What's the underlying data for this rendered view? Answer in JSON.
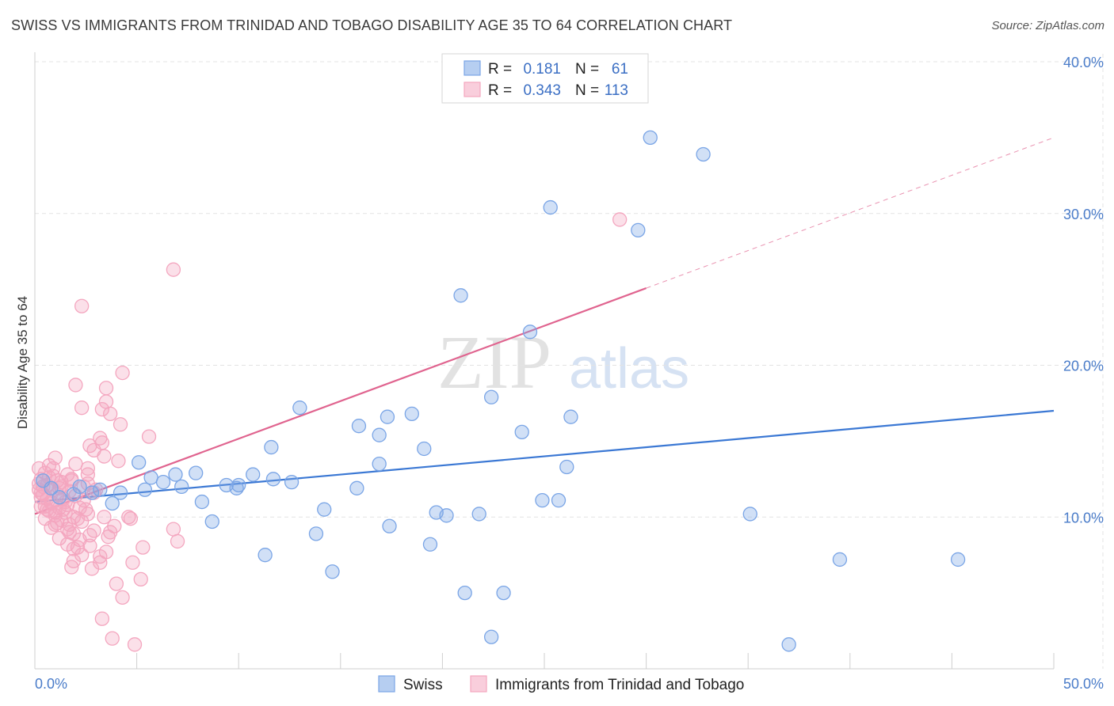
{
  "title": "SWISS VS IMMIGRANTS FROM TRINIDAD AND TOBAGO DISABILITY AGE 35 TO 64 CORRELATION CHART",
  "source": "Source: ZipAtlas.com",
  "watermark": {
    "zip": "ZIP",
    "atlas": "atlas"
  },
  "chart_data": {
    "type": "scatter",
    "title": "SWISS VS IMMIGRANTS FROM TRINIDAD AND TOBAGO DISABILITY AGE 35 TO 64 CORRELATION CHART",
    "xlabel": "",
    "ylabel": "Disability Age 35 to 64",
    "xlim": [
      0,
      50
    ],
    "ylim": [
      0,
      40
    ],
    "x_tick_labels": [
      {
        "value": 0,
        "label": "0.0%"
      },
      {
        "value": 50,
        "label": "50.0%"
      }
    ],
    "y_tick_labels": [
      {
        "value": 10,
        "label": "10.0%"
      },
      {
        "value": 20,
        "label": "20.0%"
      },
      {
        "value": 30,
        "label": "30.0%"
      },
      {
        "value": 40,
        "label": "40.0%"
      }
    ],
    "grid": true,
    "legend_position": "top-center",
    "legend": [
      {
        "series": "Swiss",
        "r_label": "R =",
        "r_value": "0.181",
        "n_label": "N =",
        "n_value": "61"
      },
      {
        "series": "Immigrants from Trinidad and Tobago",
        "r_label": "R =",
        "r_value": "0.343",
        "n_label": "N =",
        "n_value": "113"
      }
    ],
    "series": [
      {
        "name": "Swiss",
        "color": "#7aa5e6",
        "line_color": "#3b78d4",
        "trend": {
          "x0": 0,
          "y0": 11.0,
          "x1": 50,
          "y1": 17.0,
          "solid_to": 50
        },
        "points": [
          [
            30.2,
            35.0
          ],
          [
            32.8,
            33.9
          ],
          [
            25.3,
            30.4
          ],
          [
            29.6,
            28.9
          ],
          [
            20.9,
            24.6
          ],
          [
            24.3,
            22.2
          ],
          [
            22.4,
            17.9
          ],
          [
            13.0,
            17.2
          ],
          [
            17.3,
            16.6
          ],
          [
            18.5,
            16.8
          ],
          [
            26.3,
            16.6
          ],
          [
            15.9,
            16.0
          ],
          [
            16.9,
            15.4
          ],
          [
            23.9,
            15.6
          ],
          [
            11.6,
            14.6
          ],
          [
            19.1,
            14.5
          ],
          [
            5.1,
            13.6
          ],
          [
            16.9,
            13.5
          ],
          [
            7.9,
            12.9
          ],
          [
            6.9,
            12.8
          ],
          [
            26.1,
            13.3
          ],
          [
            10.7,
            12.8
          ],
          [
            5.7,
            12.6
          ],
          [
            11.7,
            12.5
          ],
          [
            12.6,
            12.3
          ],
          [
            6.3,
            12.3
          ],
          [
            9.4,
            12.1
          ],
          [
            10.0,
            12.1
          ],
          [
            7.2,
            12.0
          ],
          [
            9.9,
            11.9
          ],
          [
            15.8,
            11.9
          ],
          [
            3.2,
            11.8
          ],
          [
            5.4,
            11.8
          ],
          [
            2.8,
            11.6
          ],
          [
            4.2,
            11.6
          ],
          [
            1.9,
            11.5
          ],
          [
            1.2,
            11.3
          ],
          [
            8.2,
            11.0
          ],
          [
            3.8,
            10.9
          ],
          [
            24.9,
            11.1
          ],
          [
            25.7,
            11.1
          ],
          [
            14.2,
            10.5
          ],
          [
            19.7,
            10.3
          ],
          [
            20.2,
            10.1
          ],
          [
            21.8,
            10.2
          ],
          [
            35.1,
            10.2
          ],
          [
            8.7,
            9.7
          ],
          [
            17.4,
            9.4
          ],
          [
            13.8,
            8.9
          ],
          [
            19.4,
            8.2
          ],
          [
            11.3,
            7.5
          ],
          [
            39.5,
            7.2
          ],
          [
            45.3,
            7.2
          ],
          [
            14.6,
            6.4
          ],
          [
            21.1,
            5.0
          ],
          [
            23.0,
            5.0
          ],
          [
            22.4,
            2.1
          ],
          [
            37.0,
            1.6
          ],
          [
            0.8,
            11.9
          ],
          [
            2.2,
            12.0
          ],
          [
            0.4,
            12.4
          ]
        ]
      },
      {
        "name": "Immigrants from Trinidad and Tobago",
        "color": "#f4a6bf",
        "line_color": "#e0648f",
        "trend": {
          "x0": 0,
          "y0": 10.2,
          "x1": 50,
          "y1": 35.0,
          "solid_to": 30
        },
        "points": [
          [
            28.7,
            29.6
          ],
          [
            6.8,
            26.3
          ],
          [
            2.3,
            23.9
          ],
          [
            4.3,
            19.5
          ],
          [
            2.0,
            18.7
          ],
          [
            3.5,
            18.5
          ],
          [
            3.5,
            17.6
          ],
          [
            2.3,
            17.2
          ],
          [
            3.3,
            17.1
          ],
          [
            3.7,
            16.8
          ],
          [
            4.2,
            16.1
          ],
          [
            5.6,
            15.3
          ],
          [
            3.2,
            15.2
          ],
          [
            3.3,
            14.9
          ],
          [
            2.7,
            14.7
          ],
          [
            2.9,
            14.4
          ],
          [
            1.0,
            13.9
          ],
          [
            3.4,
            14.0
          ],
          [
            4.1,
            13.7
          ],
          [
            2.0,
            13.5
          ],
          [
            0.2,
            13.2
          ],
          [
            0.9,
            13.2
          ],
          [
            0.5,
            12.9
          ],
          [
            1.6,
            12.8
          ],
          [
            0.7,
            12.6
          ],
          [
            2.6,
            12.8
          ],
          [
            0.3,
            12.5
          ],
          [
            1.1,
            12.4
          ],
          [
            1.8,
            12.4
          ],
          [
            2.6,
            12.2
          ],
          [
            0.6,
            12.1
          ],
          [
            1.3,
            12.0
          ],
          [
            0.2,
            11.8
          ],
          [
            0.9,
            11.8
          ],
          [
            1.7,
            11.7
          ],
          [
            0.4,
            11.5
          ],
          [
            1.1,
            11.5
          ],
          [
            2.0,
            11.4
          ],
          [
            0.6,
            11.2
          ],
          [
            1.4,
            11.2
          ],
          [
            2.4,
            11.1
          ],
          [
            0.8,
            10.9
          ],
          [
            1.6,
            10.8
          ],
          [
            0.3,
            10.7
          ],
          [
            1.2,
            10.6
          ],
          [
            2.2,
            10.6
          ],
          [
            0.7,
            10.4
          ],
          [
            1.5,
            10.3
          ],
          [
            2.6,
            10.2
          ],
          [
            1.0,
            10.1
          ],
          [
            1.9,
            10.0
          ],
          [
            3.4,
            10.0
          ],
          [
            4.6,
            10.0
          ],
          [
            0.5,
            9.9
          ],
          [
            1.3,
            9.8
          ],
          [
            2.3,
            9.7
          ],
          [
            1.0,
            9.5
          ],
          [
            1.7,
            9.5
          ],
          [
            3.9,
            9.4
          ],
          [
            0.8,
            9.3
          ],
          [
            1.6,
            9.2
          ],
          [
            2.9,
            9.1
          ],
          [
            6.8,
            9.2
          ],
          [
            1.9,
            8.9
          ],
          [
            2.7,
            8.8
          ],
          [
            3.6,
            8.7
          ],
          [
            1.2,
            8.6
          ],
          [
            2.2,
            8.5
          ],
          [
            7.0,
            8.4
          ],
          [
            1.6,
            8.2
          ],
          [
            2.7,
            8.1
          ],
          [
            5.3,
            8.0
          ],
          [
            1.9,
            7.9
          ],
          [
            3.5,
            7.7
          ],
          [
            2.3,
            7.5
          ],
          [
            3.2,
            7.4
          ],
          [
            1.9,
            7.1
          ],
          [
            3.2,
            7.0
          ],
          [
            4.8,
            7.0
          ],
          [
            1.8,
            6.7
          ],
          [
            2.8,
            6.6
          ],
          [
            5.2,
            5.9
          ],
          [
            4.0,
            5.6
          ],
          [
            4.3,
            4.7
          ],
          [
            3.3,
            3.3
          ],
          [
            3.8,
            2.0
          ],
          [
            4.9,
            1.6
          ],
          [
            0.3,
            11.3
          ],
          [
            0.5,
            10.7
          ],
          [
            1.4,
            10.5
          ],
          [
            2.1,
            9.9
          ],
          [
            0.9,
            12.7
          ],
          [
            1.8,
            12.5
          ],
          [
            2.4,
            12.0
          ],
          [
            0.2,
            12.2
          ],
          [
            1.5,
            11.0
          ],
          [
            2.9,
            11.6
          ],
          [
            0.7,
            13.4
          ],
          [
            1.2,
            11.9
          ],
          [
            0.4,
            12.0
          ],
          [
            2.5,
            10.5
          ],
          [
            1.0,
            10.3
          ],
          [
            1.7,
            9.0
          ],
          [
            0.6,
            10.5
          ],
          [
            3.0,
            11.8
          ],
          [
            1.3,
            12.3
          ],
          [
            0.8,
            11.0
          ],
          [
            2.1,
            8.0
          ],
          [
            1.1,
            9.6
          ],
          [
            3.7,
            9.0
          ],
          [
            4.7,
            9.9
          ],
          [
            2.6,
            13.2
          ],
          [
            0.3,
            11.6
          ]
        ]
      }
    ]
  }
}
